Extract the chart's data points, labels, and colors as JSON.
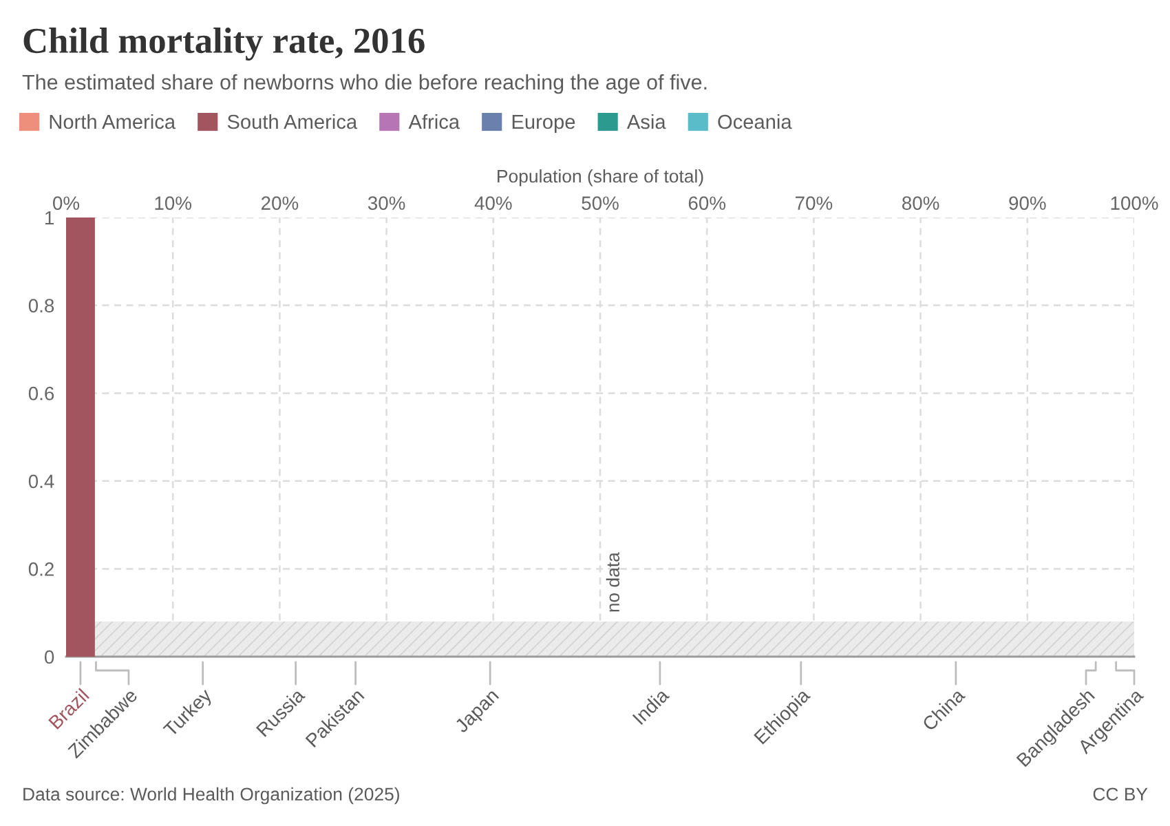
{
  "chart_data": {
    "type": "histogram",
    "title": "Child mortality rate, 2016",
    "subtitle": "The estimated share of newborns who die before reaching the age of five.",
    "xlabel": "Population (share of total)",
    "bins": [
      0,
      2.7
    ],
    "series": [
      {
        "name": "North America",
        "color": "#ee8f7b",
        "type": "bar"
      },
      {
        "name": "South America",
        "color": "#a2555f",
        "values": [
          1
        ]
      },
      {
        "name": "Africa",
        "color": "#b675b4",
        "type": "bar"
      },
      {
        "name": "Europe",
        "color": "#6b80ac",
        "type": "bar"
      },
      {
        "name": "Asia",
        "color": "#2c9a8e",
        "type": "bar"
      },
      {
        "name": "Oceania",
        "color": "#5bbcc9",
        "type": "bar"
      }
    ],
    "xlim": [
      0,
      100
    ],
    "xticks": [
      {
        "value": 0,
        "label": "0%"
      },
      {
        "value": 10,
        "label": "10%"
      },
      {
        "value": 20,
        "label": "20%"
      },
      {
        "value": 30,
        "label": "30%"
      },
      {
        "value": 40,
        "label": "40%"
      },
      {
        "value": 50,
        "label": "50%"
      },
      {
        "value": 60,
        "label": "60%"
      },
      {
        "value": 70,
        "label": "70%"
      },
      {
        "value": 80,
        "label": "80%"
      },
      {
        "value": 90,
        "label": "90%"
      },
      {
        "value": 100,
        "label": "100%"
      }
    ],
    "ylim": [
      0,
      1
    ],
    "yticks": [
      0,
      0.2,
      0.4,
      0.6,
      0.8,
      1
    ],
    "bands": [
      {
        "axis": "x",
        "from": 2.7,
        "to": 100,
        "label": "no data",
        "color": "#ebebeb"
      }
    ],
    "grid": true,
    "legend": "top",
    "annotations": [
      {
        "text": "Brazil",
        "x": 1.35,
        "y": 0
      },
      {
        "text": "Zimbabwe",
        "x": 2.8,
        "y": 0
      },
      {
        "text": "Turkey",
        "x": 12.8,
        "y": 0
      },
      {
        "text": "Russia",
        "x": 21.5,
        "y": 0
      },
      {
        "text": "Pakistan",
        "x": 27.1,
        "y": 0
      },
      {
        "text": "Japan",
        "x": 39.7,
        "y": 0
      },
      {
        "text": "India",
        "x": 55.6,
        "y": 0
      },
      {
        "text": "Ethiopia",
        "x": 68.8,
        "y": 0
      },
      {
        "text": "China",
        "x": 83.3,
        "y": 0
      },
      {
        "text": "Bangladesh",
        "x": 96.4,
        "y": 0
      },
      {
        "text": "Argentina",
        "x": 98.3,
        "y": 0
      },
      "Data source: World Health Organization (2025)",
      "CC BY"
    ]
  }
}
